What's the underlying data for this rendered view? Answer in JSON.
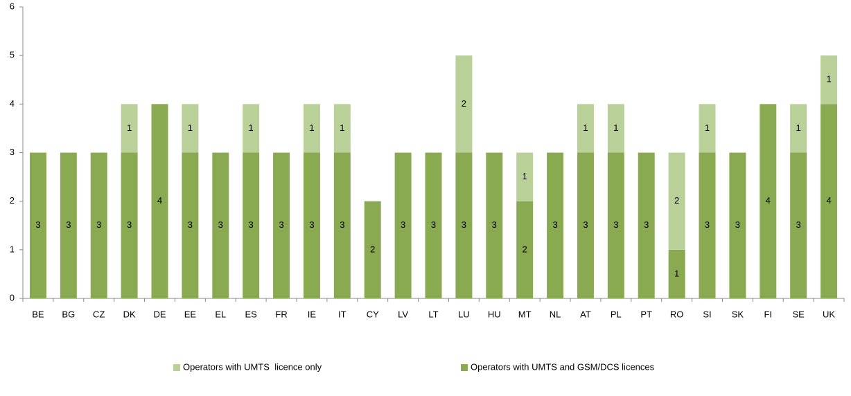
{
  "chart_data": {
    "type": "stacked_bar",
    "categories": [
      "BE",
      "BG",
      "CZ",
      "DK",
      "DE",
      "EE",
      "EL",
      "ES",
      "FR",
      "IE",
      "IT",
      "CY",
      "LV",
      "LT",
      "LU",
      "HU",
      "MT",
      "NL",
      "AT",
      "PL",
      "PT",
      "RO",
      "SI",
      "SK",
      "FI",
      "SE",
      "UK"
    ],
    "series": [
      {
        "name": "Operators with UMTS and GSM/DCS licences",
        "color": "#8aaa52",
        "values": [
          3,
          3,
          3,
          3,
          4,
          3,
          3,
          3,
          3,
          3,
          3,
          2,
          3,
          3,
          3,
          3,
          2,
          3,
          3,
          3,
          3,
          1,
          3,
          3,
          4,
          3,
          4
        ]
      },
      {
        "name": "Operators with UMTS  licence only",
        "color": "#b9d199",
        "values": [
          0,
          0,
          0,
          1,
          0,
          1,
          0,
          1,
          0,
          1,
          1,
          0,
          0,
          0,
          2,
          0,
          1,
          0,
          1,
          1,
          0,
          2,
          1,
          0,
          0,
          1,
          1
        ]
      }
    ],
    "ylim": [
      0,
      6
    ],
    "yticks": [
      0,
      1,
      2,
      3,
      4,
      5,
      6
    ],
    "grid": false,
    "legend": "bottom"
  }
}
